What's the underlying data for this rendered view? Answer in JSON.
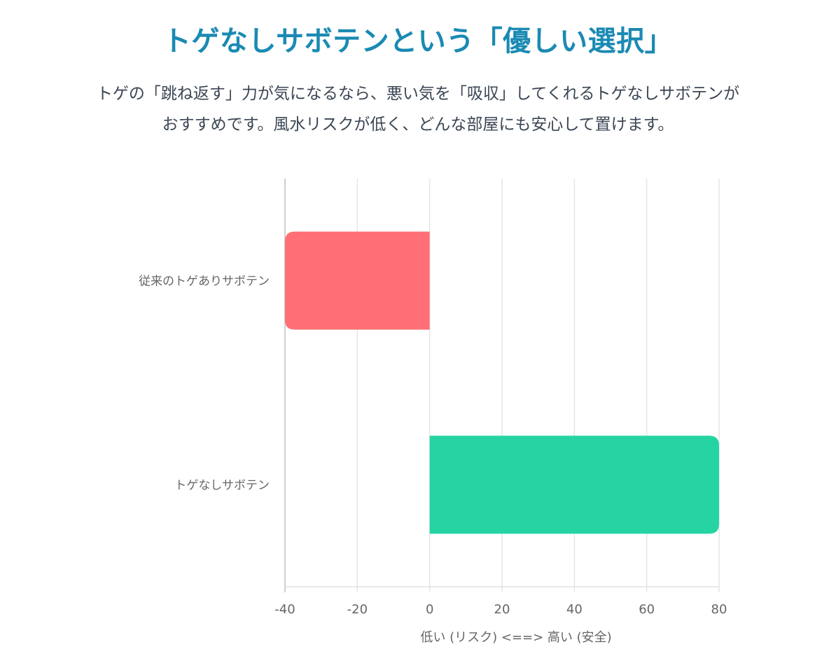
{
  "header": {
    "title": "トゲなしサボテンという「優しい選択」",
    "description_line1": "トゲの「跳ね返す」力が気になるなら、悪い気を「吸収」してくれるトゲなしサボテンが",
    "description_line2": "おすすめです。風水リスクが低く、どんな部屋にも安心して置けます。"
  },
  "chart_data": {
    "type": "bar",
    "orientation": "horizontal",
    "categories": [
      "従来のトゲありサボテン",
      "トゲなしサボテン"
    ],
    "values": [
      -40,
      80
    ],
    "bar_colors": [
      "#ff6f75",
      "#25d4a2"
    ],
    "xlabel": "低い (リスク) <==> 高い (安全)",
    "ylabel": "",
    "xlim": [
      -40,
      80
    ],
    "xticks": [
      "-40",
      "-20",
      "0",
      "20",
      "40",
      "60",
      "80"
    ],
    "grid": true
  }
}
